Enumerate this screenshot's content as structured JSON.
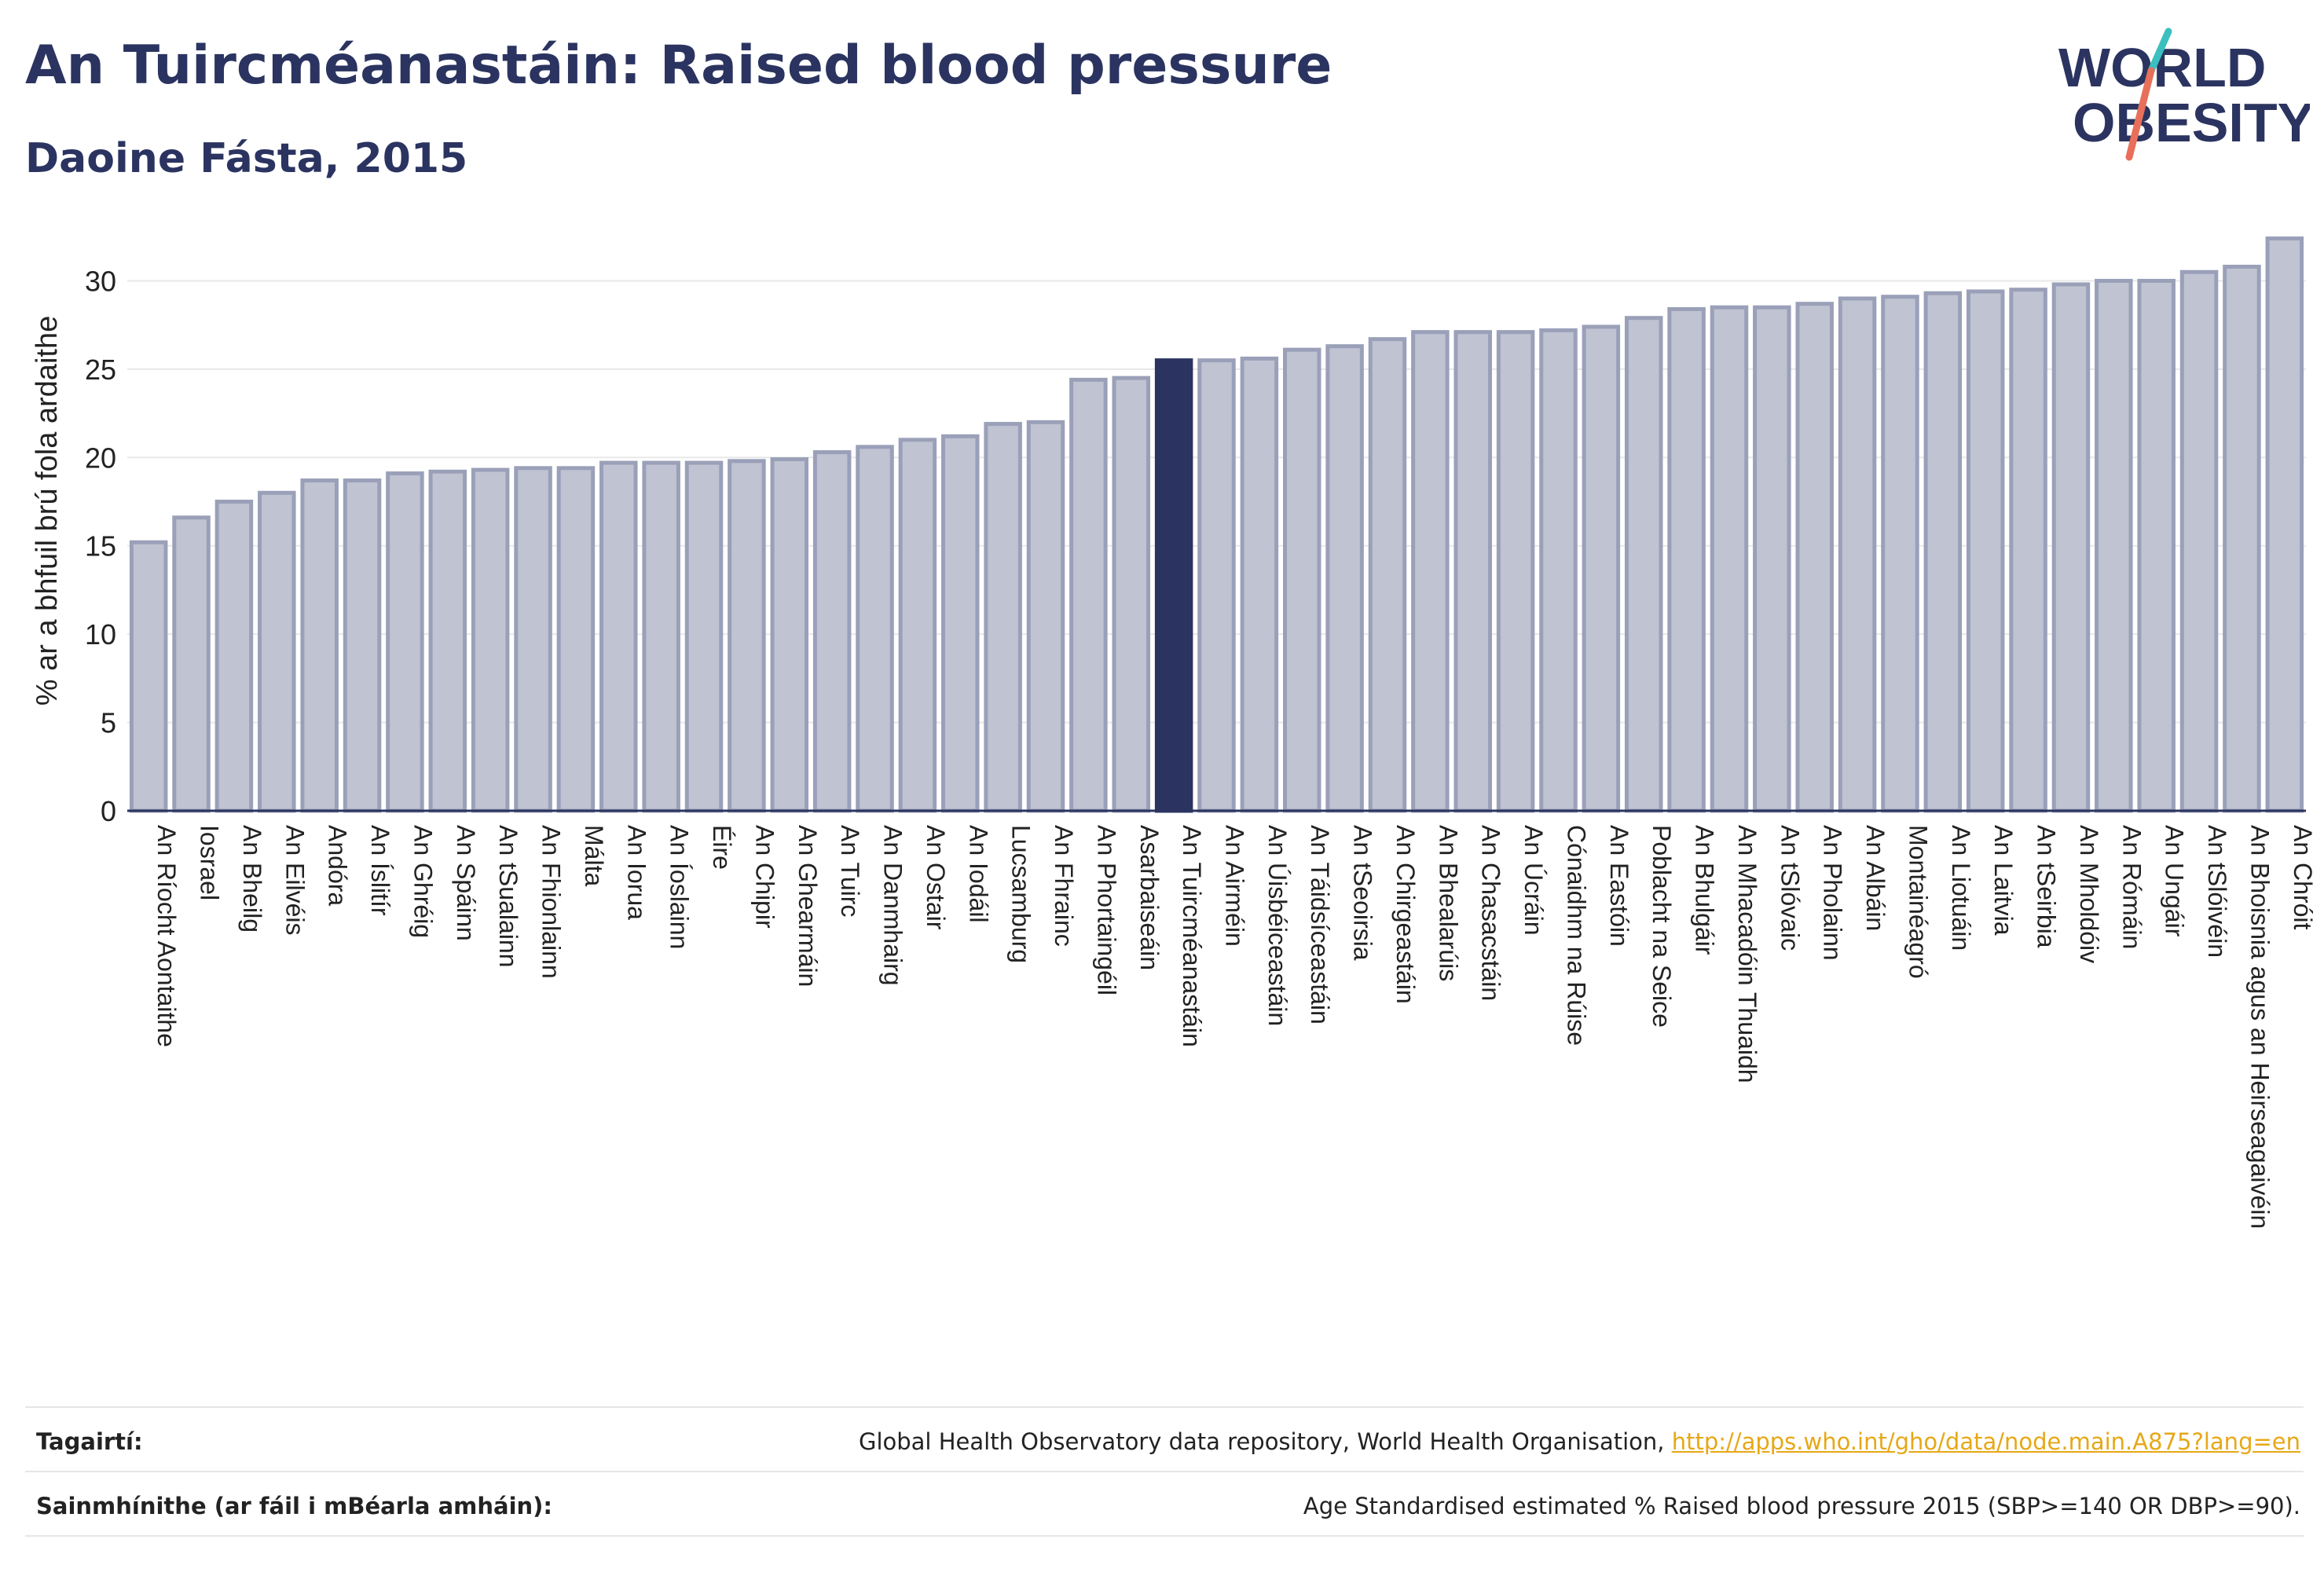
{
  "header": {
    "title": "An Tuircméanastáin: Raised blood pressure",
    "subtitle": "Daoine Fásta, 2015"
  },
  "logo": {
    "line1": "WORLD",
    "line2": "OBESITY",
    "text_color": "#2b3460",
    "slash_colors": [
      "#3bbfbf",
      "#e8705a"
    ]
  },
  "colors": {
    "bar_fill": "#bfc3d2",
    "bar_stroke": "#9aa0b8",
    "highlight_fill": "#2b3460",
    "grid": "#e8e8e8",
    "axis_text": "#222222"
  },
  "footer": {
    "references_label": "Tagairtí:",
    "references_text": "Global Health Observatory data repository, World Health Organisation,",
    "references_link": "http://apps.who.int/gho/data/node.main.A875?lang=en",
    "definitions_label": "Sainmhínithe (ar fáil i mBéarla amháin):",
    "definitions_text": "Age Standardised estimated % Raised blood pressure 2015 (SBP>=140 OR DBP>=90)."
  },
  "chart_data": {
    "type": "bar",
    "title": "An Tuircméanastáin: Raised blood pressure",
    "subtitle": "Daoine Fásta, 2015",
    "xlabel": "",
    "ylabel": "% ar a bhfuil brú fola ardaithe",
    "ylim": [
      0,
      33
    ],
    "yticks": [
      0,
      5,
      10,
      15,
      20,
      25,
      30
    ],
    "grid": true,
    "highlight": "An Tuircméanastáin",
    "categories": [
      "An Ríocht Aontaithe",
      "Iosrael",
      "An Bheilg",
      "An Eilvéis",
      "Andóra",
      "An Íslitír",
      "An Ghréig",
      "An Spáinn",
      "An tSualainn",
      "An Fhionlainn",
      "Málta",
      "An Iorua",
      "An Íoslainn",
      "Éire",
      "An Chipir",
      "An Ghearmáin",
      "An Tuirc",
      "An Danmhairg",
      "An Ostair",
      "An Iodáil",
      "Lucsamburg",
      "An Fhrainc",
      "An Phortaingéil",
      "Asarbaiseáin",
      "An Tuircméanastáin",
      "An Airméin",
      "An Úisbéiceastáin",
      "An Táidsíceastáin",
      "An tSeoirsia",
      "An Chirgeastáin",
      "An Bhealarúis",
      "An Chasacstáin",
      "An Úcráin",
      "Cónaidhm na Rúise",
      "An Eastóin",
      "Poblacht na Seice",
      "An Bhulgáir",
      "An Mhacadóin Thuaidh",
      "An tSlóvaic",
      "An Pholainn",
      "An Albáin",
      "Montainéagró",
      "An Liotuáin",
      "An Laitvia",
      "An tSeirbia",
      "An Mholdóiv",
      "An Rómáin",
      "An Ungáir",
      "An tSlóivéin",
      "An Bhoisnia agus an Heirseagaivéin",
      "An Chróit"
    ],
    "values": [
      15.2,
      16.6,
      17.5,
      18.0,
      18.7,
      18.7,
      19.1,
      19.2,
      19.3,
      19.4,
      19.4,
      19.7,
      19.7,
      19.7,
      19.8,
      19.9,
      20.3,
      20.6,
      21.0,
      21.2,
      21.9,
      22.0,
      24.4,
      24.5,
      25.5,
      25.5,
      25.6,
      26.1,
      26.3,
      26.7,
      27.1,
      27.1,
      27.1,
      27.2,
      27.4,
      27.9,
      28.4,
      28.5,
      28.5,
      28.7,
      29.0,
      29.1,
      29.3,
      29.4,
      29.5,
      29.8,
      30.0,
      30.0,
      30.5,
      30.8,
      32.4
    ]
  }
}
